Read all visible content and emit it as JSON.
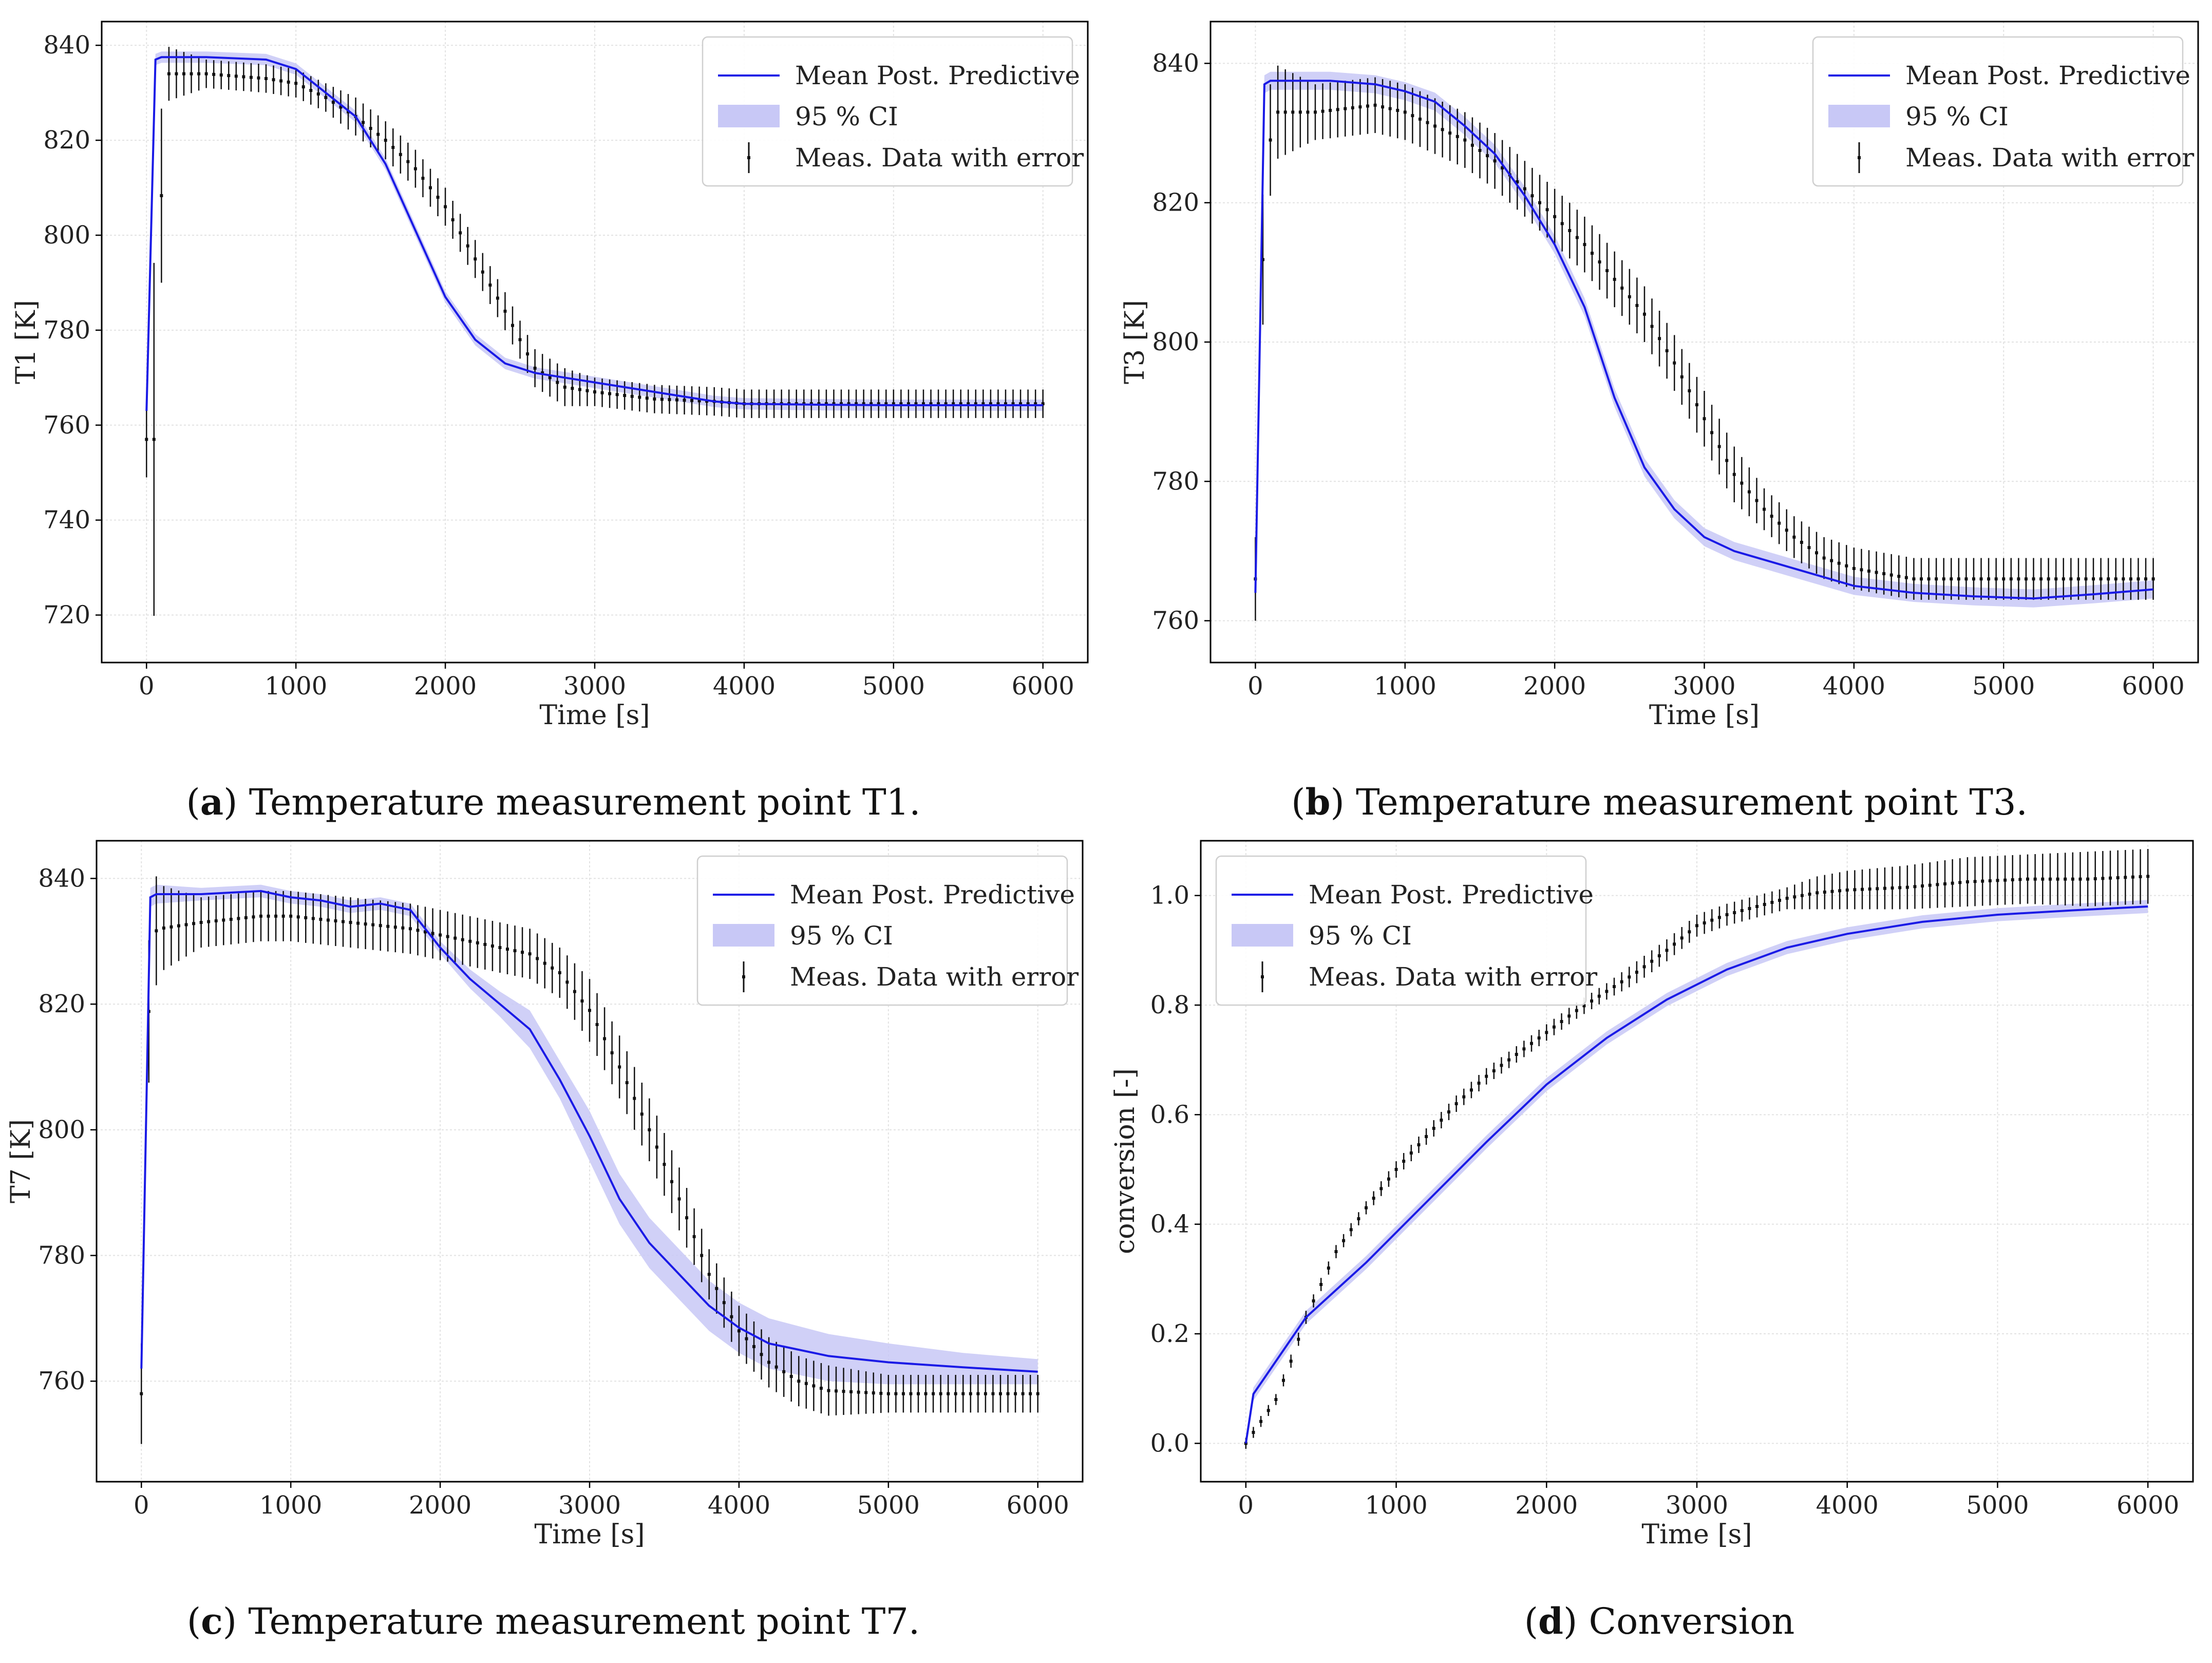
{
  "colors": {
    "mean": "#1a1ae6",
    "ci": "#c8c8f6",
    "meas": "#111111",
    "grid": "#e2e2e2"
  },
  "legend": {
    "mean_label": "Mean Post. Predictive",
    "ci_label": "95 % CI",
    "meas_label": "Meas. Data with error"
  },
  "captions": [
    {
      "tag": "a",
      "open": "(",
      "close": ")",
      "text": " Temperature measurement point T1."
    },
    {
      "tag": "b",
      "open": "(",
      "close": ")",
      "text": " Temperature measurement point T3."
    },
    {
      "tag": "c",
      "open": "(",
      "close": ")",
      "text": " Temperature measurement point T7."
    },
    {
      "tag": "d",
      "open": "(",
      "close": ")",
      "text": " Conversion"
    }
  ],
  "chart_data": [
    {
      "id": "T1",
      "type": "line",
      "title": "",
      "xlabel": "Time [s]",
      "ylabel": "T1 [K]",
      "xlim": [
        -300,
        6300
      ],
      "ylim": [
        710,
        845
      ],
      "xticks": [
        0,
        1000,
        2000,
        3000,
        4000,
        5000,
        6000
      ],
      "yticks": [
        720,
        740,
        760,
        780,
        800,
        820,
        840
      ],
      "legend_position": "top-right",
      "mean": {
        "x": [
          0,
          60,
          100,
          400,
          800,
          1000,
          1200,
          1400,
          1600,
          1800,
          2000,
          2200,
          2400,
          2600,
          2800,
          3000,
          3400,
          3800,
          4000,
          4500,
          5000,
          5500,
          6000
        ],
        "y": [
          763,
          837,
          837.5,
          837.5,
          837,
          835,
          830,
          825,
          815,
          801,
          787,
          778,
          773,
          771,
          770,
          769,
          767,
          765,
          764.5,
          764.3,
          764.2,
          764.2,
          764.2
        ]
      },
      "ci_halfwidth": 1.2,
      "meas": {
        "interval": 50,
        "x": [
          0,
          60,
          120,
          400,
          800,
          1000,
          1200,
          1400,
          1600,
          1800,
          2000,
          2200,
          2400,
          2600,
          2800,
          3000,
          3400,
          3800,
          4000,
          4500,
          5000,
          5500,
          6000
        ],
        "y": [
          757,
          757,
          834,
          834,
          833,
          832,
          829,
          825,
          820,
          814,
          806,
          795,
          784,
          772,
          768,
          767,
          765.5,
          765,
          764.5,
          764.5,
          764.5,
          764.5,
          764.5
        ],
        "err": [
          8,
          43,
          6,
          3,
          3,
          3,
          3,
          4,
          4,
          4,
          4,
          4,
          4,
          4,
          4,
          3,
          3,
          3,
          3,
          3,
          3,
          3,
          3
        ]
      }
    },
    {
      "id": "T3",
      "type": "line",
      "title": "",
      "xlabel": "Time [s]",
      "ylabel": "T3 [K]",
      "xlim": [
        -300,
        6300
      ],
      "ylim": [
        754,
        846
      ],
      "xticks": [
        0,
        1000,
        2000,
        3000,
        4000,
        5000,
        6000
      ],
      "yticks": [
        760,
        780,
        800,
        820,
        840
      ],
      "legend_position": "top-right",
      "mean": {
        "x": [
          0,
          60,
          100,
          500,
          800,
          1000,
          1200,
          1400,
          1600,
          1800,
          2000,
          2200,
          2400,
          2600,
          2800,
          3000,
          3200,
          3600,
          4000,
          4400,
          4800,
          5200,
          5600,
          6000
        ],
        "y": [
          764,
          837,
          837.5,
          837.5,
          837,
          836,
          834.5,
          831,
          827,
          821,
          814,
          805,
          792,
          782,
          776,
          772,
          770,
          767.5,
          765,
          764,
          763.5,
          763.2,
          763.8,
          764.5
        ]
      },
      "ci_halfwidth": 1.3,
      "meas": {
        "interval": 50,
        "x": [
          0,
          60,
          120,
          400,
          800,
          1000,
          1200,
          1400,
          1600,
          1800,
          2000,
          2200,
          2400,
          2600,
          2800,
          3000,
          3200,
          3400,
          3600,
          3800,
          4000,
          4400,
          4800,
          5200,
          5600,
          6000
        ],
        "y": [
          766,
          821,
          833,
          833,
          834,
          833,
          831,
          829,
          826,
          822,
          818,
          814,
          809,
          804,
          797,
          789,
          781,
          776,
          772,
          769,
          767.5,
          766,
          766,
          766,
          766,
          766
        ],
        "err": [
          6,
          10,
          7,
          4,
          4,
          4,
          4,
          4,
          4,
          4,
          4,
          4,
          4,
          4,
          4,
          4,
          4,
          3,
          3,
          3,
          3,
          3,
          3,
          3,
          3,
          3
        ]
      }
    },
    {
      "id": "T7",
      "type": "line",
      "title": "",
      "xlabel": "Time [s]",
      "ylabel": "T7 [K]",
      "xlim": [
        -300,
        6300
      ],
      "ylim": [
        744,
        846
      ],
      "xticks": [
        0,
        1000,
        2000,
        3000,
        4000,
        5000,
        6000
      ],
      "yticks": [
        760,
        780,
        800,
        820,
        840
      ],
      "legend_position": "top-right",
      "mean": {
        "x": [
          0,
          60,
          100,
          400,
          800,
          1000,
          1200,
          1400,
          1600,
          1800,
          2000,
          2200,
          2400,
          2600,
          2800,
          3000,
          3200,
          3400,
          3600,
          3800,
          4000,
          4200,
          4600,
          5000,
          5500,
          6000
        ],
        "y": [
          762,
          837,
          837.5,
          837.5,
          838,
          837,
          836.5,
          835.5,
          836,
          835,
          829,
          824,
          820,
          816,
          808,
          799,
          789,
          782,
          777,
          772,
          768.5,
          766,
          764,
          763,
          762.2,
          761.5
        ],
        "ci_low": [
          760.5,
          835.5,
          836,
          836.5,
          837,
          836,
          835.5,
          834.5,
          835,
          834,
          828,
          822.5,
          818,
          813,
          805,
          795,
          785,
          778,
          773,
          768,
          764.5,
          762,
          760,
          759.5,
          759.5,
          759.5
        ],
        "ci_high": [
          763.5,
          838.5,
          839,
          838.5,
          839,
          838,
          837.5,
          836.5,
          837,
          836,
          830,
          825.5,
          822,
          819,
          811,
          803,
          793,
          786,
          781,
          776,
          772.5,
          770,
          767.5,
          766,
          764.5,
          763.5
        ]
      },
      "meas": {
        "interval": 50,
        "x": [
          0,
          60,
          120,
          400,
          800,
          1000,
          1200,
          1400,
          1600,
          1800,
          2000,
          2200,
          2400,
          2600,
          2800,
          3000,
          3200,
          3400,
          3600,
          3800,
          4000,
          4200,
          4400,
          4600,
          5000,
          5500,
          6000
        ],
        "y": [
          758,
          831,
          832,
          833,
          834,
          834,
          833.5,
          833,
          832.5,
          832,
          831,
          830,
          829,
          828,
          825,
          819,
          810,
          800,
          789,
          777,
          768,
          763,
          760,
          758.5,
          758,
          758,
          758
        ],
        "err": [
          8,
          12,
          7,
          4,
          4,
          4,
          4,
          4,
          4,
          4,
          4,
          4,
          4,
          4,
          4,
          5,
          5,
          5,
          5,
          4,
          4,
          4,
          4,
          4,
          3,
          3,
          3
        ]
      }
    },
    {
      "id": "conversion",
      "type": "line",
      "title": "",
      "xlabel": "Time [s]",
      "ylabel": "conversion [-]",
      "xlim": [
        -300,
        6300
      ],
      "ylim": [
        -0.07,
        1.1
      ],
      "xticks": [
        0,
        1000,
        2000,
        3000,
        4000,
        5000,
        6000
      ],
      "yticks": [
        0.0,
        0.2,
        0.4,
        0.6,
        0.8,
        1.0
      ],
      "legend_position": "top-left",
      "mean": {
        "x": [
          0,
          50,
          100,
          200,
          400,
          800,
          1200,
          1600,
          2000,
          2400,
          2800,
          3200,
          3600,
          4000,
          4500,
          5000,
          5500,
          6000
        ],
        "y": [
          0.0,
          0.09,
          0.11,
          0.15,
          0.23,
          0.33,
          0.44,
          0.55,
          0.655,
          0.74,
          0.81,
          0.865,
          0.905,
          0.93,
          0.952,
          0.965,
          0.973,
          0.98
        ]
      },
      "ci_halfwidth": 0.012,
      "meas": {
        "interval": 50,
        "x": [
          0,
          100,
          200,
          300,
          400,
          600,
          800,
          1000,
          1200,
          1400,
          1600,
          1800,
          2000,
          2200,
          2400,
          2600,
          2800,
          3000,
          3200,
          3400,
          3600,
          3800,
          4000,
          4400,
          4800,
          5200,
          5600,
          6000
        ],
        "y": [
          0.0,
          0.04,
          0.08,
          0.15,
          0.23,
          0.35,
          0.43,
          0.5,
          0.56,
          0.62,
          0.67,
          0.71,
          0.75,
          0.79,
          0.825,
          0.86,
          0.9,
          0.945,
          0.965,
          0.98,
          0.995,
          1.005,
          1.01,
          1.015,
          1.025,
          1.03,
          1.03,
          1.035
        ],
        "err": [
          0.01,
          0.01,
          0.01,
          0.012,
          0.012,
          0.012,
          0.012,
          0.015,
          0.015,
          0.015,
          0.015,
          0.015,
          0.015,
          0.015,
          0.015,
          0.02,
          0.02,
          0.02,
          0.02,
          0.02,
          0.02,
          0.03,
          0.035,
          0.04,
          0.045,
          0.045,
          0.05,
          0.05
        ]
      }
    }
  ]
}
